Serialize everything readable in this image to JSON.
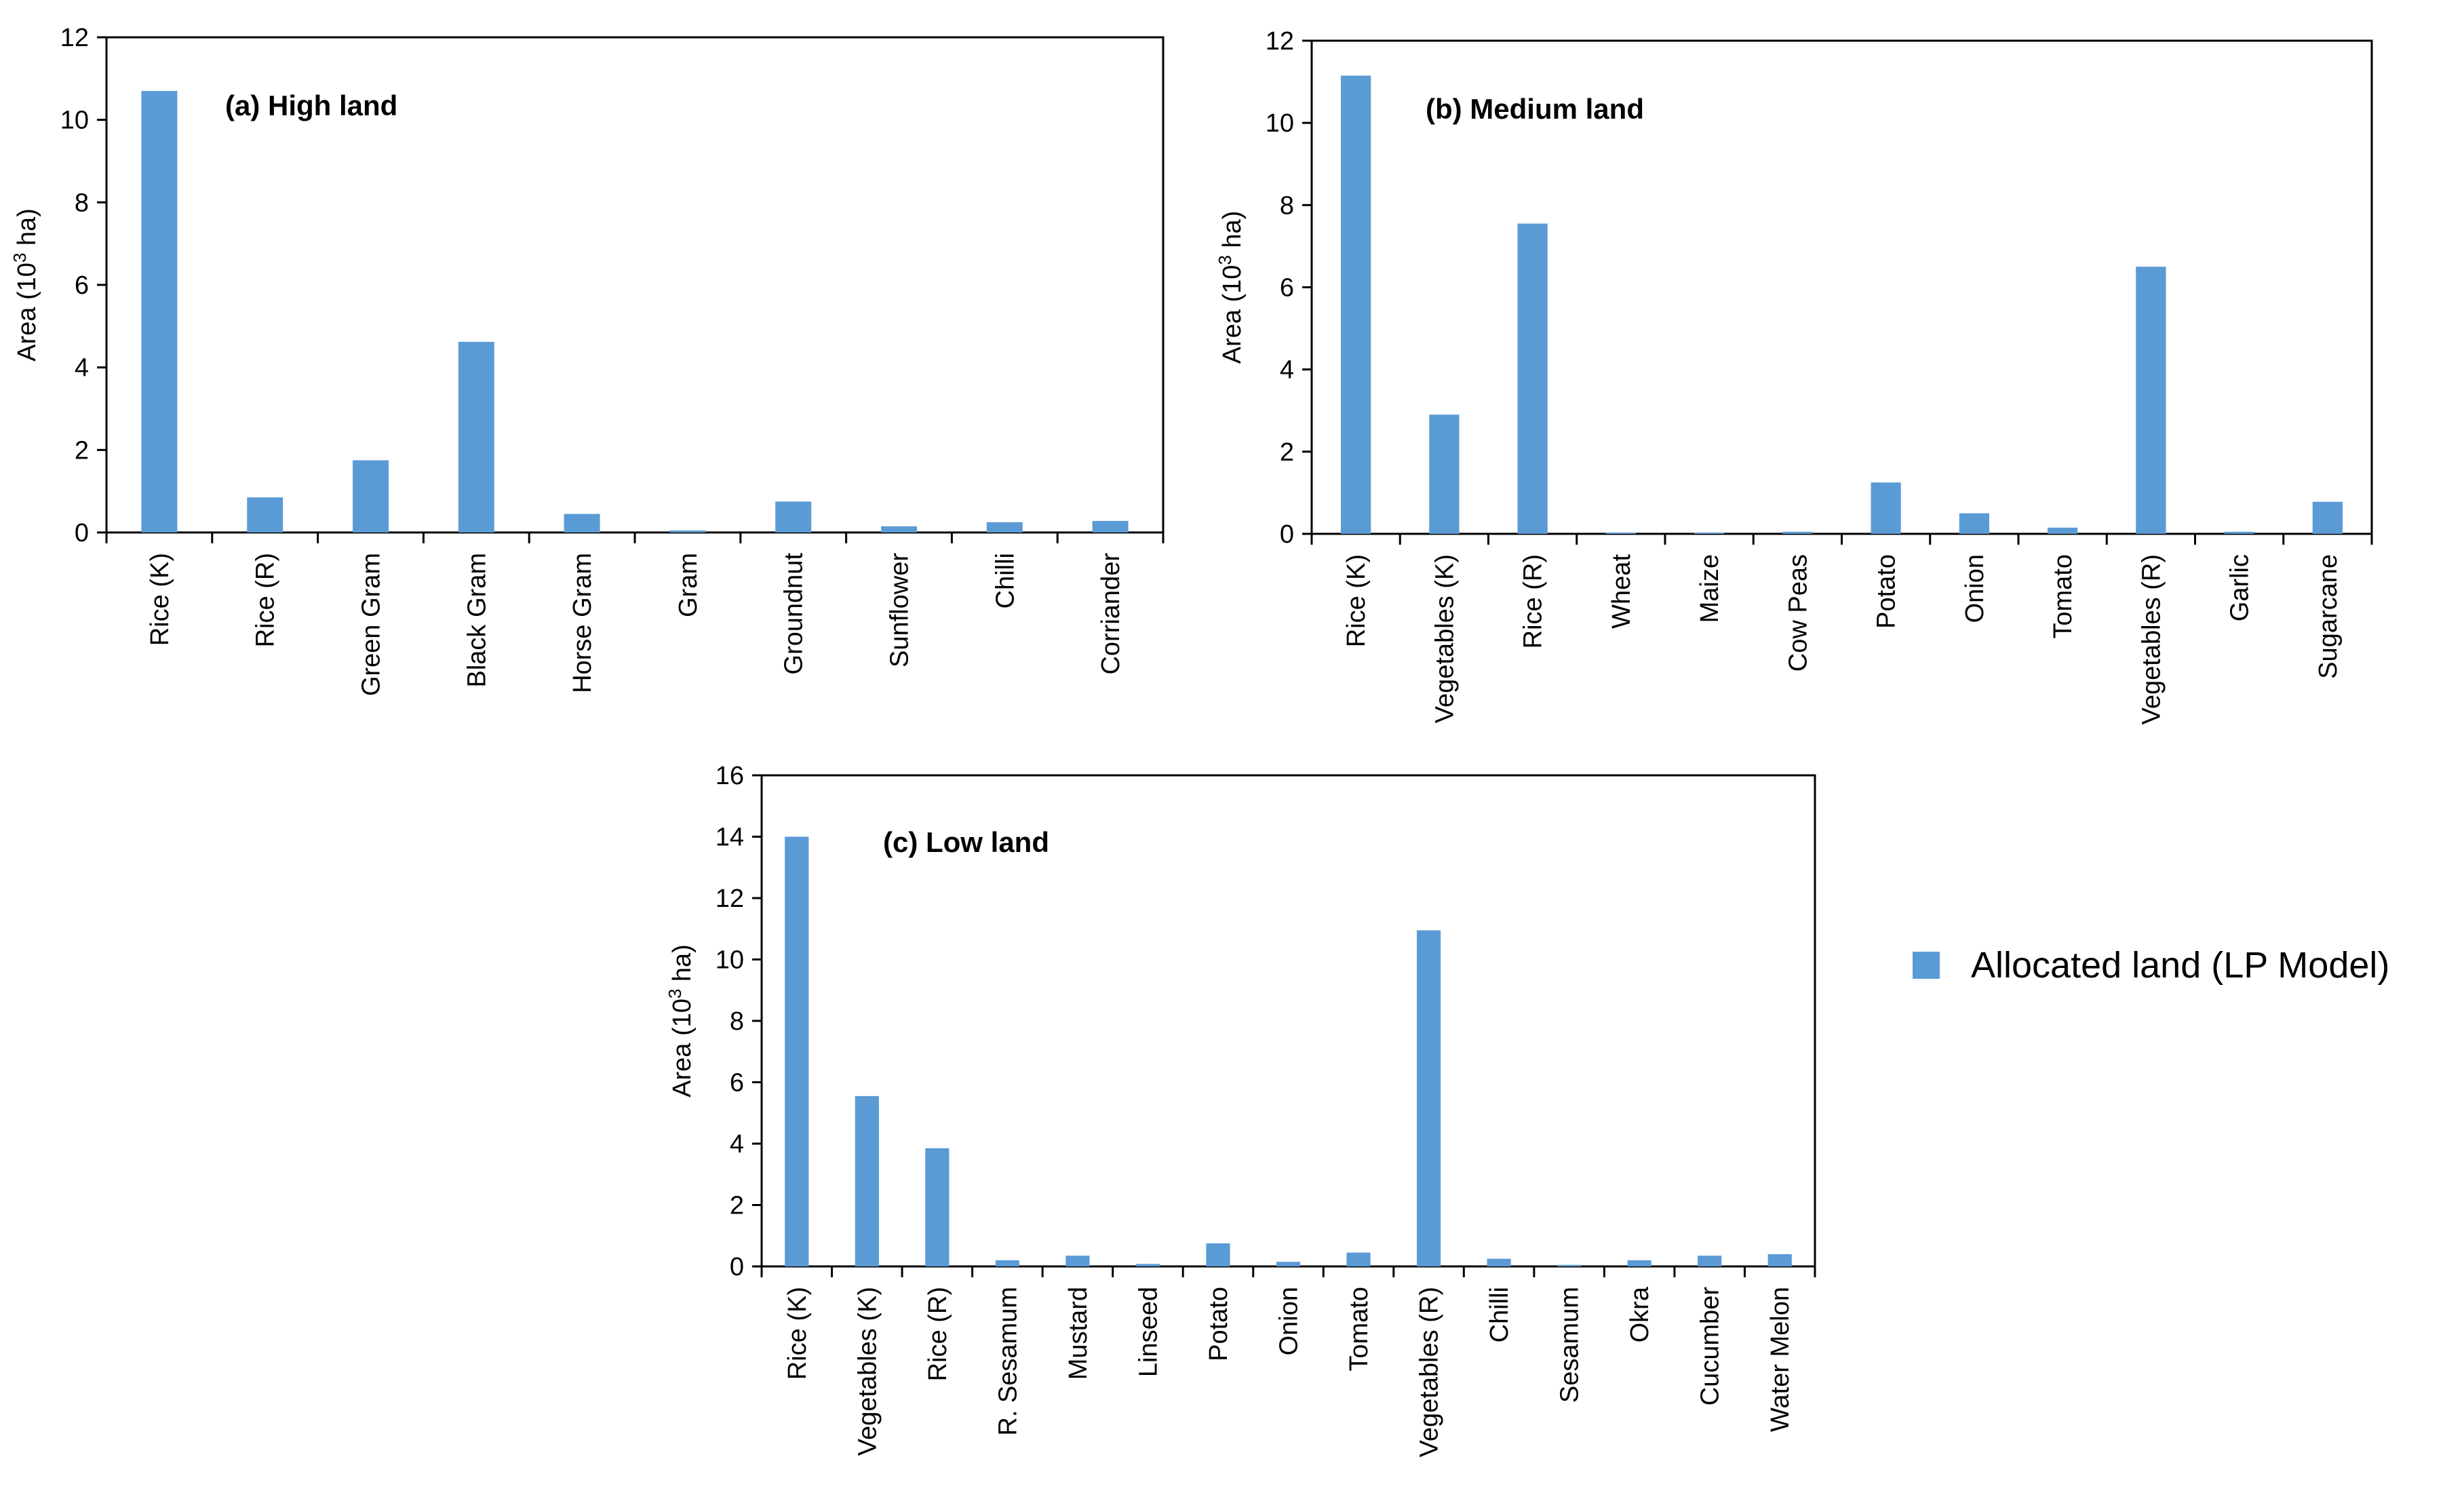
{
  "colors": {
    "bar": "#5b9bd5",
    "axis": "#000000"
  },
  "legend": {
    "label": "Allocated land (LP Model)"
  },
  "chart_data": [
    {
      "type": "bar",
      "title": "(a) High land",
      "ylabel": "Area (10",
      "ylabel_sup": "3",
      "ylabel_tail": " ha)",
      "ylim": [
        0,
        12
      ],
      "yticks": [
        0,
        2,
        4,
        6,
        8,
        10,
        12
      ],
      "categories": [
        "Rice  (K)",
        "Rice  (R)",
        "Green Gram",
        "Black Gram",
        "Horse Gram",
        "Gram",
        "Groundnut",
        "Sunflower",
        "Chilli",
        "Corriander"
      ],
      "series": [
        {
          "name": "Allocated land (LP Model)",
          "values": [
            10.7,
            0.85,
            1.75,
            4.62,
            0.45,
            0.05,
            0.75,
            0.15,
            0.25,
            0.28
          ]
        }
      ]
    },
    {
      "type": "bar",
      "title": "(b) Medium land",
      "ylabel": "Area (10",
      "ylabel_sup": "3",
      "ylabel_tail": " ha)",
      "ylim": [
        0,
        12
      ],
      "yticks": [
        0,
        2,
        4,
        6,
        8,
        10,
        12
      ],
      "categories": [
        "Rice (K)",
        "Vegetables (K)",
        "Rice  (R)",
        "Wheat",
        "Maize",
        "Cow Peas",
        "Potato",
        "Onion",
        "Tomato",
        "Vegetables (R)",
        "Garlic",
        "Sugarcane"
      ],
      "series": [
        {
          "name": "Allocated land (LP Model)",
          "values": [
            11.15,
            2.9,
            7.55,
            0.03,
            0.03,
            0.05,
            1.25,
            0.5,
            0.15,
            6.5,
            0.05,
            0.78
          ]
        }
      ]
    },
    {
      "type": "bar",
      "title": "(c) Low land",
      "ylabel": "Area (10",
      "ylabel_sup": "3",
      "ylabel_tail": " ha)",
      "ylim": [
        0,
        16
      ],
      "yticks": [
        0,
        2,
        4,
        6,
        8,
        10,
        12,
        14,
        16
      ],
      "categories": [
        "Rice (K)",
        "Vegetables (K)",
        "Rice  (R)",
        "R. Sesamum",
        "Mustard",
        "Linseed",
        "Potato",
        "Onion",
        "Tomato",
        "Vegetables (R)",
        "Chilli",
        "Sesamum",
        "Okra",
        "Cucumber",
        "Water Melon"
      ],
      "series": [
        {
          "name": "Allocated land (LP Model)",
          "values": [
            14.0,
            5.55,
            3.85,
            0.2,
            0.35,
            0.08,
            0.75,
            0.15,
            0.45,
            10.95,
            0.25,
            0.05,
            0.2,
            0.35,
            0.4
          ]
        }
      ]
    }
  ]
}
